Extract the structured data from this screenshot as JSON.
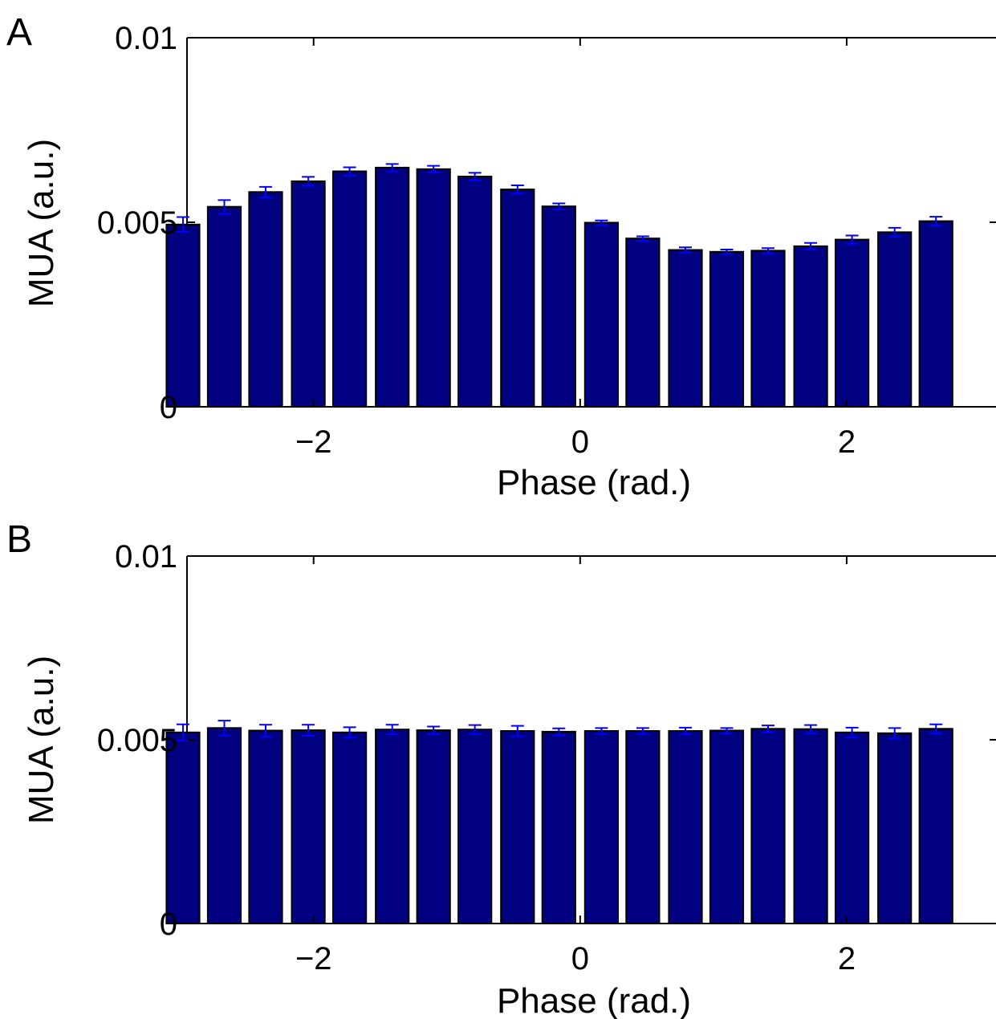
{
  "colors": {
    "bar_fill": "#000080",
    "bar_edge": "#000000",
    "error_bar": "#0000ff"
  },
  "chart_data": [
    {
      "type": "bar",
      "panel_label": "A",
      "xlabel": "Phase (rad.)",
      "ylabel": "MUA (a.u.)",
      "xlim": [
        -2.95,
        3.0
      ],
      "ylim": [
        0,
        0.01
      ],
      "xticks": [
        -2,
        0,
        2
      ],
      "xtick_labels": [
        "−2",
        "0",
        "2"
      ],
      "yticks": [
        0,
        0.005,
        0.01
      ],
      "ytick_labels": [
        "0",
        "0.005",
        "0.01"
      ],
      "x": [
        -2.98,
        -2.67,
        -2.36,
        -2.04,
        -1.73,
        -1.41,
        -1.1,
        -0.79,
        -0.47,
        -0.16,
        0.16,
        0.47,
        0.79,
        1.1,
        1.41,
        1.73,
        2.04,
        2.36,
        2.67,
        2.98
      ],
      "values": [
        0.00494,
        0.00542,
        0.00582,
        0.00611,
        0.00638,
        0.00648,
        0.00644,
        0.00624,
        0.00589,
        0.00543,
        0.00499,
        0.00456,
        0.00425,
        0.0042,
        0.00423,
        0.00435,
        0.00453,
        0.00473,
        0.00503,
        0.0
      ],
      "errors": [
        0.0002,
        0.00018,
        0.00014,
        0.00012,
        0.00011,
        0.0001,
        9e-05,
        0.0001,
        0.00011,
        8e-05,
        6e-05,
        6e-05,
        7e-05,
        6e-05,
        7e-05,
        9e-05,
        0.00011,
        0.00012,
        0.00012,
        0.0
      ]
    },
    {
      "type": "bar",
      "panel_label": "B",
      "xlabel": "Phase (rad.)",
      "ylabel": "MUA (a.u.)",
      "xlim": [
        -2.95,
        3.0
      ],
      "ylim": [
        0,
        0.01
      ],
      "xticks": [
        -2,
        0,
        2
      ],
      "xtick_labels": [
        "−2",
        "0",
        "2"
      ],
      "yticks": [
        0,
        0.005,
        0.01
      ],
      "ytick_labels": [
        "0",
        "0.005",
        "0.01"
      ],
      "x": [
        -2.98,
        -2.67,
        -2.36,
        -2.04,
        -1.73,
        -1.41,
        -1.1,
        -0.79,
        -0.47,
        -0.16,
        0.16,
        0.47,
        0.79,
        1.1,
        1.41,
        1.73,
        2.04,
        2.36,
        2.67,
        2.98
      ],
      "values": [
        0.0052,
        0.00532,
        0.00525,
        0.00526,
        0.0052,
        0.00528,
        0.00526,
        0.00528,
        0.00524,
        0.00522,
        0.00524,
        0.00524,
        0.00524,
        0.00525,
        0.0053,
        0.00529,
        0.0052,
        0.00518,
        0.0053,
        0.0
      ],
      "errors": [
        0.00022,
        0.0002,
        0.00016,
        0.00015,
        0.00014,
        0.00013,
        0.0001,
        0.00012,
        0.00014,
        9e-05,
        8e-05,
        8e-05,
        9e-05,
        7e-05,
        9e-05,
        0.00011,
        0.00013,
        0.00014,
        0.00012,
        0.0
      ]
    }
  ]
}
